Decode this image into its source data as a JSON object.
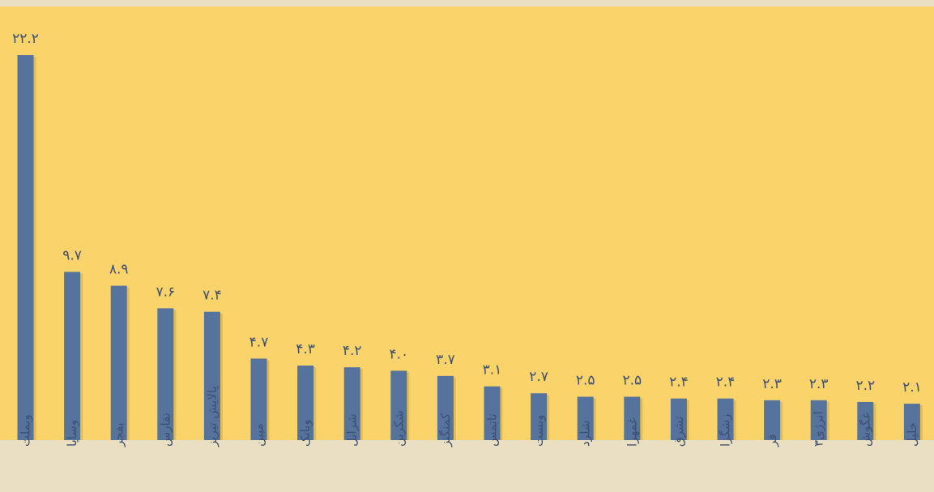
{
  "chart_data": {
    "type": "bar",
    "categories": [
      "وبملت",
      "وساپا",
      "بفجر",
      "تفارس",
      "پالایش تبریز",
      "میبن",
      "وبانک",
      "شرانل",
      "شکربن",
      "کمنگنز",
      "تاتمس",
      "وبست",
      "شلرد",
      "غمهرا",
      "تشرق",
      "زشگزا",
      "فر",
      "انرژی۳",
      "غگوش",
      "خلیل"
    ],
    "values": [
      22.2,
      9.7,
      8.9,
      7.6,
      7.4,
      4.7,
      4.3,
      4.2,
      4.0,
      3.7,
      3.1,
      2.7,
      2.5,
      2.5,
      2.4,
      2.4,
      2.3,
      2.3,
      2.2,
      2.1
    ],
    "value_labels": [
      "۲۲.۲",
      "۹.۷",
      "۸.۹",
      "۷.۶",
      "۷.۴",
      "۴.۷",
      "۴.۳",
      "۴.۲",
      "۴.۰",
      "۳.۷",
      "۳.۱",
      "۲.۷",
      "۲.۵",
      "۲.۵",
      "۲.۴",
      "۲.۴",
      "۲.۳",
      "۲.۳",
      "۲.۲",
      "۲.۱"
    ],
    "ylim": [
      0,
      24
    ],
    "grid": false,
    "colors": {
      "plot_background": "#fad36a",
      "bar": "#56739e",
      "bar_shadow": "#b58e34",
      "label_band": "#eadfc3",
      "text": "#3d4f72"
    }
  }
}
